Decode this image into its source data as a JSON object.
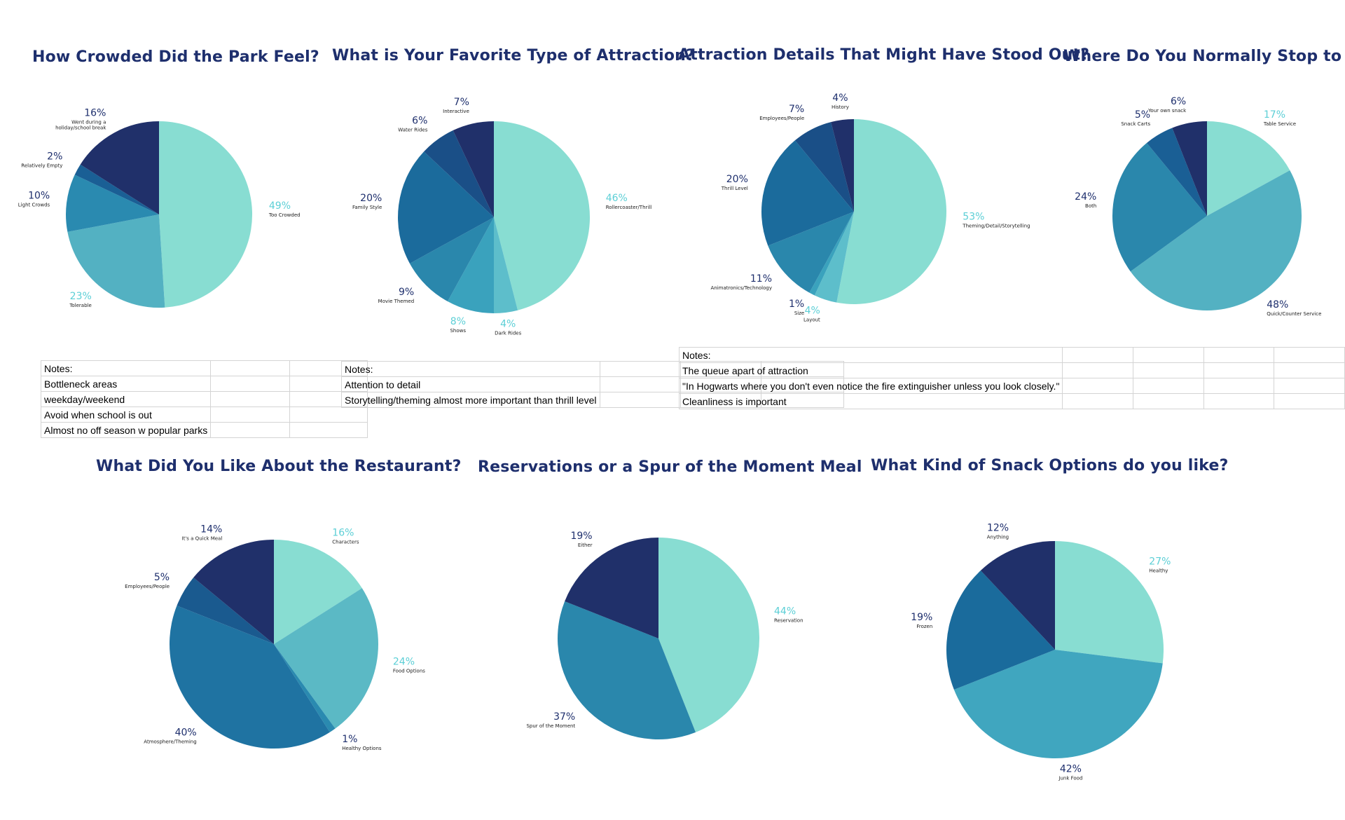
{
  "charts": [
    {
      "title": "How Crowded Did the Park Feel?",
      "chart_data": {
        "type": "pie",
        "title": "How Crowded Did the Park Feel?",
        "slices": [
          {
            "label": "Too Crowded",
            "percent": "49%",
            "value": 49,
            "color": "#88ddd2",
            "text_color": "#5ccfd6"
          },
          {
            "label": "Tolerable",
            "percent": "23%",
            "value": 23,
            "color": "#53b1c2",
            "text_color": "#5ccfd6"
          },
          {
            "label": "Light Crowds",
            "percent": "10%",
            "value": 10,
            "color": "#2a8ab0",
            "text_color": "#1e2f6d"
          },
          {
            "label": "Relatively Empty",
            "percent": "2%",
            "value": 2,
            "color": "#1a5f95",
            "text_color": "#1e2f6d"
          },
          {
            "label": "Went during a holiday/school break",
            "percent": "16%",
            "value": 16,
            "color": "#20306a",
            "text_color": "#1e2f6d"
          }
        ]
      }
    },
    {
      "title": "What is Your Favorite Type of Attraction?",
      "chart_data": {
        "type": "pie",
        "title": "What is Your Favorite Type of Attraction?",
        "slices": [
          {
            "label": "Rollercoaster/Thrill",
            "percent": "46%",
            "value": 46,
            "color": "#88ddd2",
            "text_color": "#5ccfd6"
          },
          {
            "label": "Dark Rides",
            "percent": "4%",
            "value": 4,
            "color": "#5dbecb",
            "text_color": "#5ccfd6"
          },
          {
            "label": "Shows",
            "percent": "8%",
            "value": 8,
            "color": "#3aa2bd",
            "text_color": "#5ccfd6"
          },
          {
            "label": "Movie Themed",
            "percent": "9%",
            "value": 9,
            "color": "#2a87ac",
            "text_color": "#1e2f6d"
          },
          {
            "label": "Family Style",
            "percent": "20%",
            "value": 20,
            "color": "#1b6b9c",
            "text_color": "#1e2f6d"
          },
          {
            "label": "Water Rides",
            "percent": "6%",
            "value": 6,
            "color": "#1a4f87",
            "text_color": "#1e2f6d"
          },
          {
            "label": "Interactive",
            "percent": "7%",
            "value": 7,
            "color": "#20306a",
            "text_color": "#1e2f6d"
          }
        ]
      }
    },
    {
      "title": "Attraction Details That Might Have Stood Out?",
      "chart_data": {
        "type": "pie",
        "title": "Attraction Details That Might Have Stood Out?",
        "slices": [
          {
            "label": "Theming/Detail/Storytelling",
            "percent": "53%",
            "value": 53,
            "color": "#88ddd2",
            "text_color": "#5ccfd6"
          },
          {
            "label": "Layout",
            "percent": "4%",
            "value": 4,
            "color": "#5dbecb",
            "text_color": "#5ccfd6"
          },
          {
            "label": "Size",
            "percent": "1%",
            "value": 1,
            "color": "#3aa2bd",
            "text_color": "#1e2f6d"
          },
          {
            "label": "Animatronics/Technology",
            "percent": "11%",
            "value": 11,
            "color": "#2a87ac",
            "text_color": "#1e2f6d"
          },
          {
            "label": "Thrill Level",
            "percent": "20%",
            "value": 20,
            "color": "#1b6b9c",
            "text_color": "#1e2f6d"
          },
          {
            "label": "Employees/People",
            "percent": "7%",
            "value": 7,
            "color": "#1a4f87",
            "text_color": "#1e2f6d"
          },
          {
            "label": "History",
            "percent": "4%",
            "value": 4,
            "color": "#20306a",
            "text_color": "#1e2f6d"
          }
        ]
      }
    },
    {
      "title": "Where Do You Normally Stop to Eat?",
      "chart_data": {
        "type": "pie",
        "title": "Where Do You Normally Stop to Eat?",
        "slices": [
          {
            "label": "Table Service",
            "percent": "17%",
            "value": 17,
            "color": "#88ddd2",
            "text_color": "#5ccfd6"
          },
          {
            "label": "Quick/Counter Service",
            "percent": "48%",
            "value": 48,
            "color": "#53b1c2",
            "text_color": "#1e2f6d"
          },
          {
            "label": "Both",
            "percent": "24%",
            "value": 24,
            "color": "#2a87ac",
            "text_color": "#1e2f6d"
          },
          {
            "label": "Snack Carts",
            "percent": "5%",
            "value": 5,
            "color": "#1a5f95",
            "text_color": "#1e2f6d"
          },
          {
            "label": "Your own snack",
            "percent": "6%",
            "value": 6,
            "color": "#20306a",
            "text_color": "#1e2f6d"
          }
        ]
      }
    },
    {
      "title": "What Did You Like About the Restaurant?",
      "chart_data": {
        "type": "pie",
        "title": "What Did You Like About the Restaurant?",
        "slices": [
          {
            "label": "Characters",
            "percent": "16%",
            "value": 16,
            "color": "#88ddd2",
            "text_color": "#5ccfd6"
          },
          {
            "label": "Food Options",
            "percent": "24%",
            "value": 24,
            "color": "#5bb9c5",
            "text_color": "#5ccfd6"
          },
          {
            "label": "Healthy Options",
            "percent": "1%",
            "value": 1,
            "color": "#2a8ab0",
            "text_color": "#1e2f6d"
          },
          {
            "label": "Atmosphere/Theming",
            "percent": "40%",
            "value": 40,
            "color": "#1f73a2",
            "text_color": "#1e2f6d"
          },
          {
            "label": "Employees/People",
            "percent": "5%",
            "value": 5,
            "color": "#1a5a8f",
            "text_color": "#1e2f6d"
          },
          {
            "label": "It's a Quick Meal",
            "percent": "14%",
            "value": 14,
            "color": "#20306a",
            "text_color": "#1e2f6d"
          }
        ]
      }
    },
    {
      "title": "Reservations or a Spur of the Moment Meal",
      "chart_data": {
        "type": "pie",
        "title": "Reservations or a Spur of the Moment Meal",
        "slices": [
          {
            "label": "Reservation",
            "percent": "44%",
            "value": 44,
            "color": "#88ddd2",
            "text_color": "#5ccfd6"
          },
          {
            "label": "Spur of the Moment",
            "percent": "37%",
            "value": 37,
            "color": "#2a87ac",
            "text_color": "#1e2f6d"
          },
          {
            "label": "Either",
            "percent": "19%",
            "value": 19,
            "color": "#20306a",
            "text_color": "#1e2f6d"
          }
        ]
      }
    },
    {
      "title": "What Kind of Snack Options do you like?",
      "chart_data": {
        "type": "pie",
        "title": "What Kind of Snack Options do you like?",
        "slices": [
          {
            "label": "Healthy",
            "percent": "27%",
            "value": 27,
            "color": "#88ddd2",
            "text_color": "#5ccfd6"
          },
          {
            "label": "Junk Food",
            "percent": "42%",
            "value": 42,
            "color": "#40a6bf",
            "text_color": "#1e2f6d"
          },
          {
            "label": "Frozen",
            "percent": "19%",
            "value": 19,
            "color": "#1a6b9c",
            "text_color": "#1e2f6d"
          },
          {
            "label": "Anything",
            "percent": "12%",
            "value": 12,
            "color": "#20306a",
            "text_color": "#1e2f6d"
          }
        ]
      }
    }
  ],
  "notes_tables": [
    {
      "rows": [
        "Notes:",
        "Bottleneck areas",
        "weekday/weekend",
        "Avoid when school is out",
        "Almost no off season w popular parks"
      ]
    },
    {
      "rows": [
        "Notes:",
        "Attention to detail",
        "Storytelling/theming almost more important than thrill level"
      ]
    },
    {
      "rows": [
        "Notes:",
        "The queue apart of attraction",
        "\"In Hogwarts where you don't even notice the fire extinguisher unless you look closely.\"",
        "Cleanliness is important"
      ]
    }
  ]
}
